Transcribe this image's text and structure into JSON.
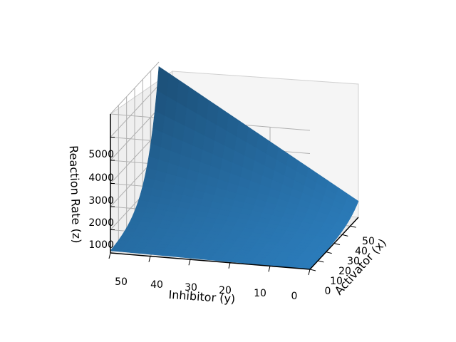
{
  "chart_data": {
    "type": "surface3d",
    "title": "",
    "xlabel": "Activator (x)",
    "ylabel": "Inhibitor (y)",
    "zlabel": "Reaction Rate (z)",
    "xlim": [
      0,
      60
    ],
    "ylim": [
      0,
      50
    ],
    "zlim": [
      0,
      6000
    ],
    "x_ticks": [
      "0",
      "10",
      "20",
      "30",
      "40",
      "50"
    ],
    "y_ticks": [
      "50",
      "40",
      "30",
      "20",
      "10",
      "0"
    ],
    "z_ticks": [
      "1000",
      "2000",
      "3000",
      "4000",
      "5000"
    ],
    "surface": {
      "x_range": [
        0,
        60
      ],
      "y_range": [
        0,
        50
      ],
      "z_corner_min": 0,
      "z_corner_back_left": 650,
      "z_corner_max": 5800,
      "growth": "exponential in x, increasing with y"
    },
    "grid": true,
    "colors": {
      "surface": "#2b7bb9",
      "pane": "#f2f2f2",
      "grid": "#b0b0b0"
    }
  }
}
